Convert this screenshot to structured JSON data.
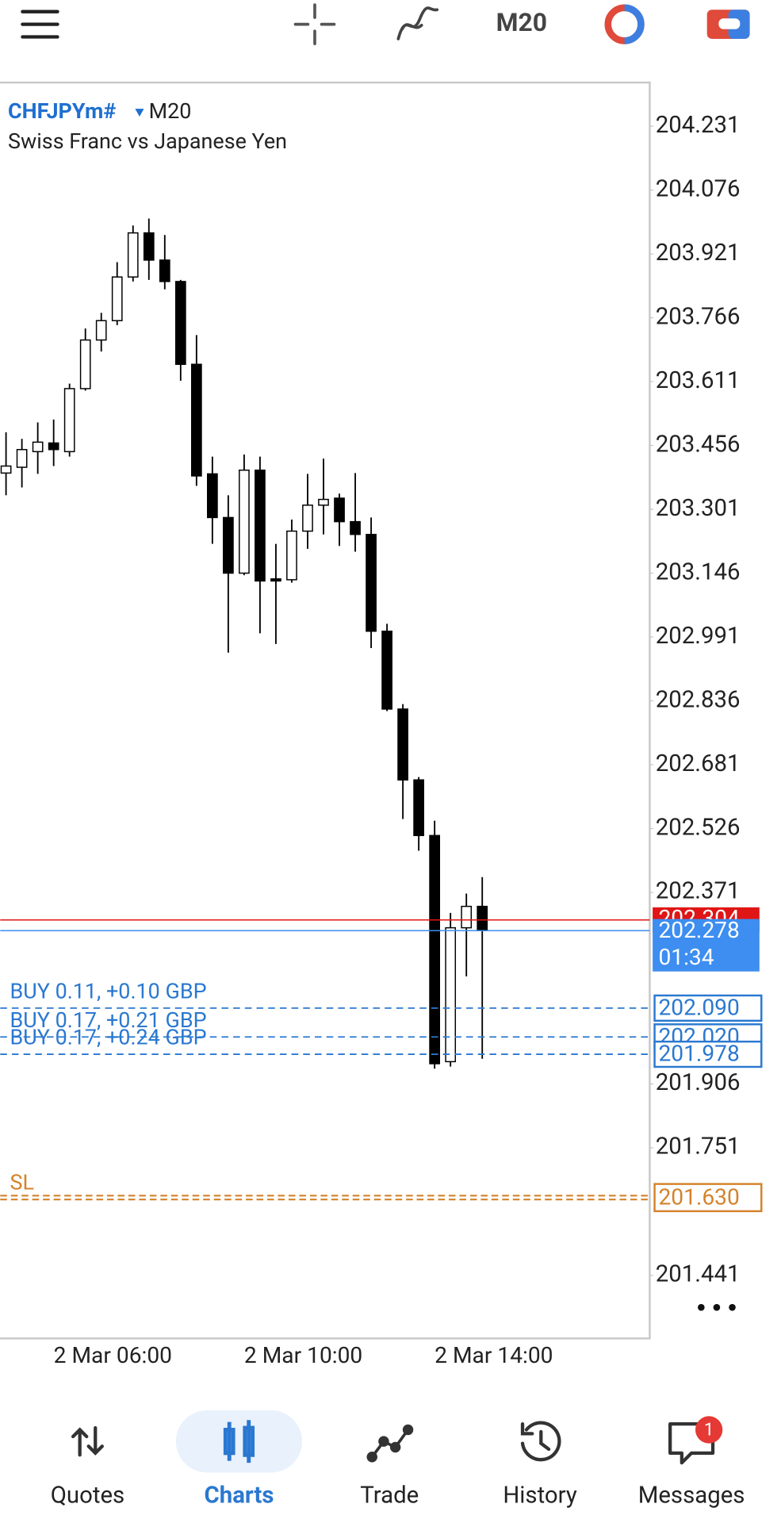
{
  "toolbar": {
    "timeframe": "M20"
  },
  "chart_data": {
    "type": "candlestick",
    "title": "CHFJPYm#",
    "timeframe": "M20",
    "subtitle": "Swiss Franc vs Japanese Yen",
    "categories": [
      null,
      null,
      null,
      "2 Mar 06:00",
      null,
      null,
      null,
      null,
      null,
      null,
      null,
      null,
      null,
      null,
      null,
      "2 Mar 10:00",
      null,
      null,
      null,
      null,
      null,
      null,
      null,
      null,
      null,
      null,
      null,
      "2 Mar 14:00",
      null,
      null,
      null
    ],
    "open": [
      203.389,
      203.403,
      203.441,
      203.462,
      203.441,
      203.594,
      203.712,
      203.759,
      203.865,
      203.972,
      203.906,
      203.854,
      203.653,
      203.387,
      203.281,
      203.146,
      203.396,
      203.132,
      203.13,
      203.248,
      203.311,
      203.328,
      203.271,
      203.24,
      203.005,
      202.816,
      202.644,
      202.509,
      201.96,
      202.285,
      202.337
    ],
    "high": [
      203.488,
      203.472,
      203.512,
      203.519,
      203.606,
      203.74,
      203.778,
      203.901,
      203.99,
      204.007,
      203.967,
      203.858,
      203.724,
      203.429,
      203.335,
      203.434,
      203.429,
      203.217,
      203.276,
      203.387,
      203.424,
      203.339,
      203.389,
      203.281,
      203.023,
      202.828,
      202.651,
      202.545,
      202.321,
      202.368,
      202.408
    ],
    "low": [
      203.335,
      203.354,
      203.387,
      203.406,
      203.429,
      203.589,
      203.684,
      203.748,
      203.854,
      203.858,
      203.835,
      203.613,
      203.358,
      203.217,
      202.953,
      203.141,
      203.0,
      202.974,
      203.123,
      203.205,
      203.24,
      203.212,
      203.198,
      202.964,
      202.811,
      202.549,
      202.472,
      201.943,
      201.948,
      202.167,
      201.967
    ],
    "close": [
      203.406,
      203.446,
      203.464,
      203.446,
      203.594,
      203.712,
      203.759,
      203.865,
      203.972,
      203.906,
      203.854,
      203.653,
      203.382,
      203.281,
      203.146,
      203.396,
      203.127,
      203.127,
      203.248,
      203.311,
      203.325,
      203.271,
      203.24,
      203.005,
      202.816,
      202.644,
      202.509,
      201.955,
      202.285,
      202.337,
      202.278
    ],
    "up_color": "#ffffff",
    "down_color": "#000000",
    "ylim": [
      201.288,
      204.337
    ],
    "yticks": [
      204.231,
      204.076,
      203.921,
      203.766,
      203.611,
      203.456,
      203.301,
      203.146,
      202.991,
      202.836,
      202.681,
      202.526,
      202.371,
      201.906,
      201.751,
      201.441
    ],
    "ask": {
      "price": 202.304,
      "color": "#e01515"
    },
    "bid": {
      "price": 202.278,
      "timer": "01:34",
      "color": "#3d8ef0"
    },
    "positions": [
      {
        "label": "BUY 0.11,  +0.10 GBP",
        "price": {
          "value": 202.09,
          "label": "202.090"
        }
      },
      {
        "label": "BUY 0.17,  +0.21 GBP",
        "price": {
          "value": 202.02,
          "label": "202.020"
        }
      },
      {
        "label": "BUY 0.17,  +0.24 GBP",
        "price": {
          "value": 201.978,
          "label": "201.978"
        }
      }
    ],
    "position_color": "#2a78d0",
    "stop_loss": {
      "label": "SL",
      "price": {
        "value": 201.63,
        "label": "201.630"
      },
      "color": "#d4822a"
    }
  },
  "nav": {
    "items": [
      "Quotes",
      "Charts",
      "Trade",
      "History",
      "Messages"
    ],
    "active": 1,
    "badge": "1"
  }
}
